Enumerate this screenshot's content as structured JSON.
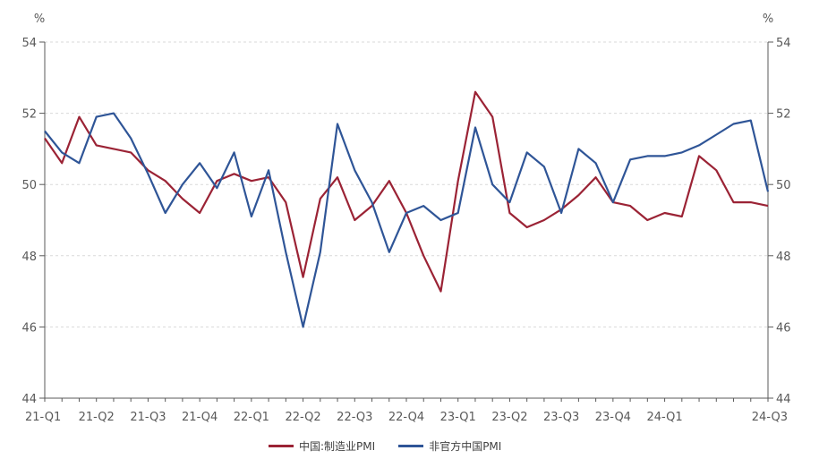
{
  "chart_data": {
    "type": "line",
    "y_unit": "%",
    "ylim": [
      44,
      54
    ],
    "yticks": [
      "54",
      "52",
      "50",
      "48",
      "46",
      "44"
    ],
    "x_tick_labels": [
      "21-Q1",
      "21-Q2",
      "21-Q3",
      "21-Q4",
      "22-Q1",
      "22-Q2",
      "22-Q3",
      "22-Q4",
      "23-Q1",
      "23-Q2",
      "23-Q3",
      "23-Q4",
      "24-Q1",
      "24-Q3"
    ],
    "x": [
      "2021-01",
      "2021-02",
      "2021-03",
      "2021-04",
      "2021-05",
      "2021-06",
      "2021-07",
      "2021-08",
      "2021-09",
      "2021-10",
      "2021-11",
      "2021-12",
      "2022-01",
      "2022-02",
      "2022-03",
      "2022-04",
      "2022-05",
      "2022-06",
      "2022-07",
      "2022-08",
      "2022-09",
      "2022-10",
      "2022-11",
      "2022-12",
      "2023-01",
      "2023-02",
      "2023-03",
      "2023-04",
      "2023-05",
      "2023-06",
      "2023-07",
      "2023-08",
      "2023-09",
      "2023-10",
      "2023-11",
      "2023-12",
      "2024-01",
      "2024-02",
      "2024-03",
      "2024-04",
      "2024-05",
      "2024-06",
      "2024-07"
    ],
    "series": [
      {
        "name": "中国:制造业PMI",
        "color": "#9b2335",
        "values": [
          51.3,
          50.6,
          51.9,
          51.1,
          51.0,
          50.9,
          50.4,
          50.1,
          49.6,
          49.2,
          50.1,
          50.3,
          50.1,
          50.2,
          49.5,
          47.4,
          49.6,
          50.2,
          49.0,
          49.4,
          50.1,
          49.2,
          48.0,
          47.0,
          50.1,
          52.6,
          51.9,
          49.2,
          48.8,
          49.0,
          49.3,
          49.7,
          50.2,
          49.5,
          49.4,
          49.0,
          49.2,
          49.1,
          50.8,
          50.4,
          49.5,
          49.5,
          49.4
        ]
      },
      {
        "name": "非官方中国PMI",
        "color": "#2f5597",
        "values": [
          51.5,
          50.9,
          50.6,
          51.9,
          52.0,
          51.3,
          50.3,
          49.2,
          50.0,
          50.6,
          49.9,
          50.9,
          49.1,
          50.4,
          48.1,
          46.0,
          48.1,
          51.7,
          50.4,
          49.5,
          48.1,
          49.2,
          49.4,
          49.0,
          49.2,
          51.6,
          50.0,
          49.5,
          50.9,
          50.5,
          49.2,
          51.0,
          50.6,
          49.5,
          50.7,
          50.8,
          50.8,
          50.9,
          51.1,
          51.4,
          51.7,
          51.8,
          49.8
        ]
      }
    ],
    "grid": true,
    "legend_position": "bottom"
  }
}
